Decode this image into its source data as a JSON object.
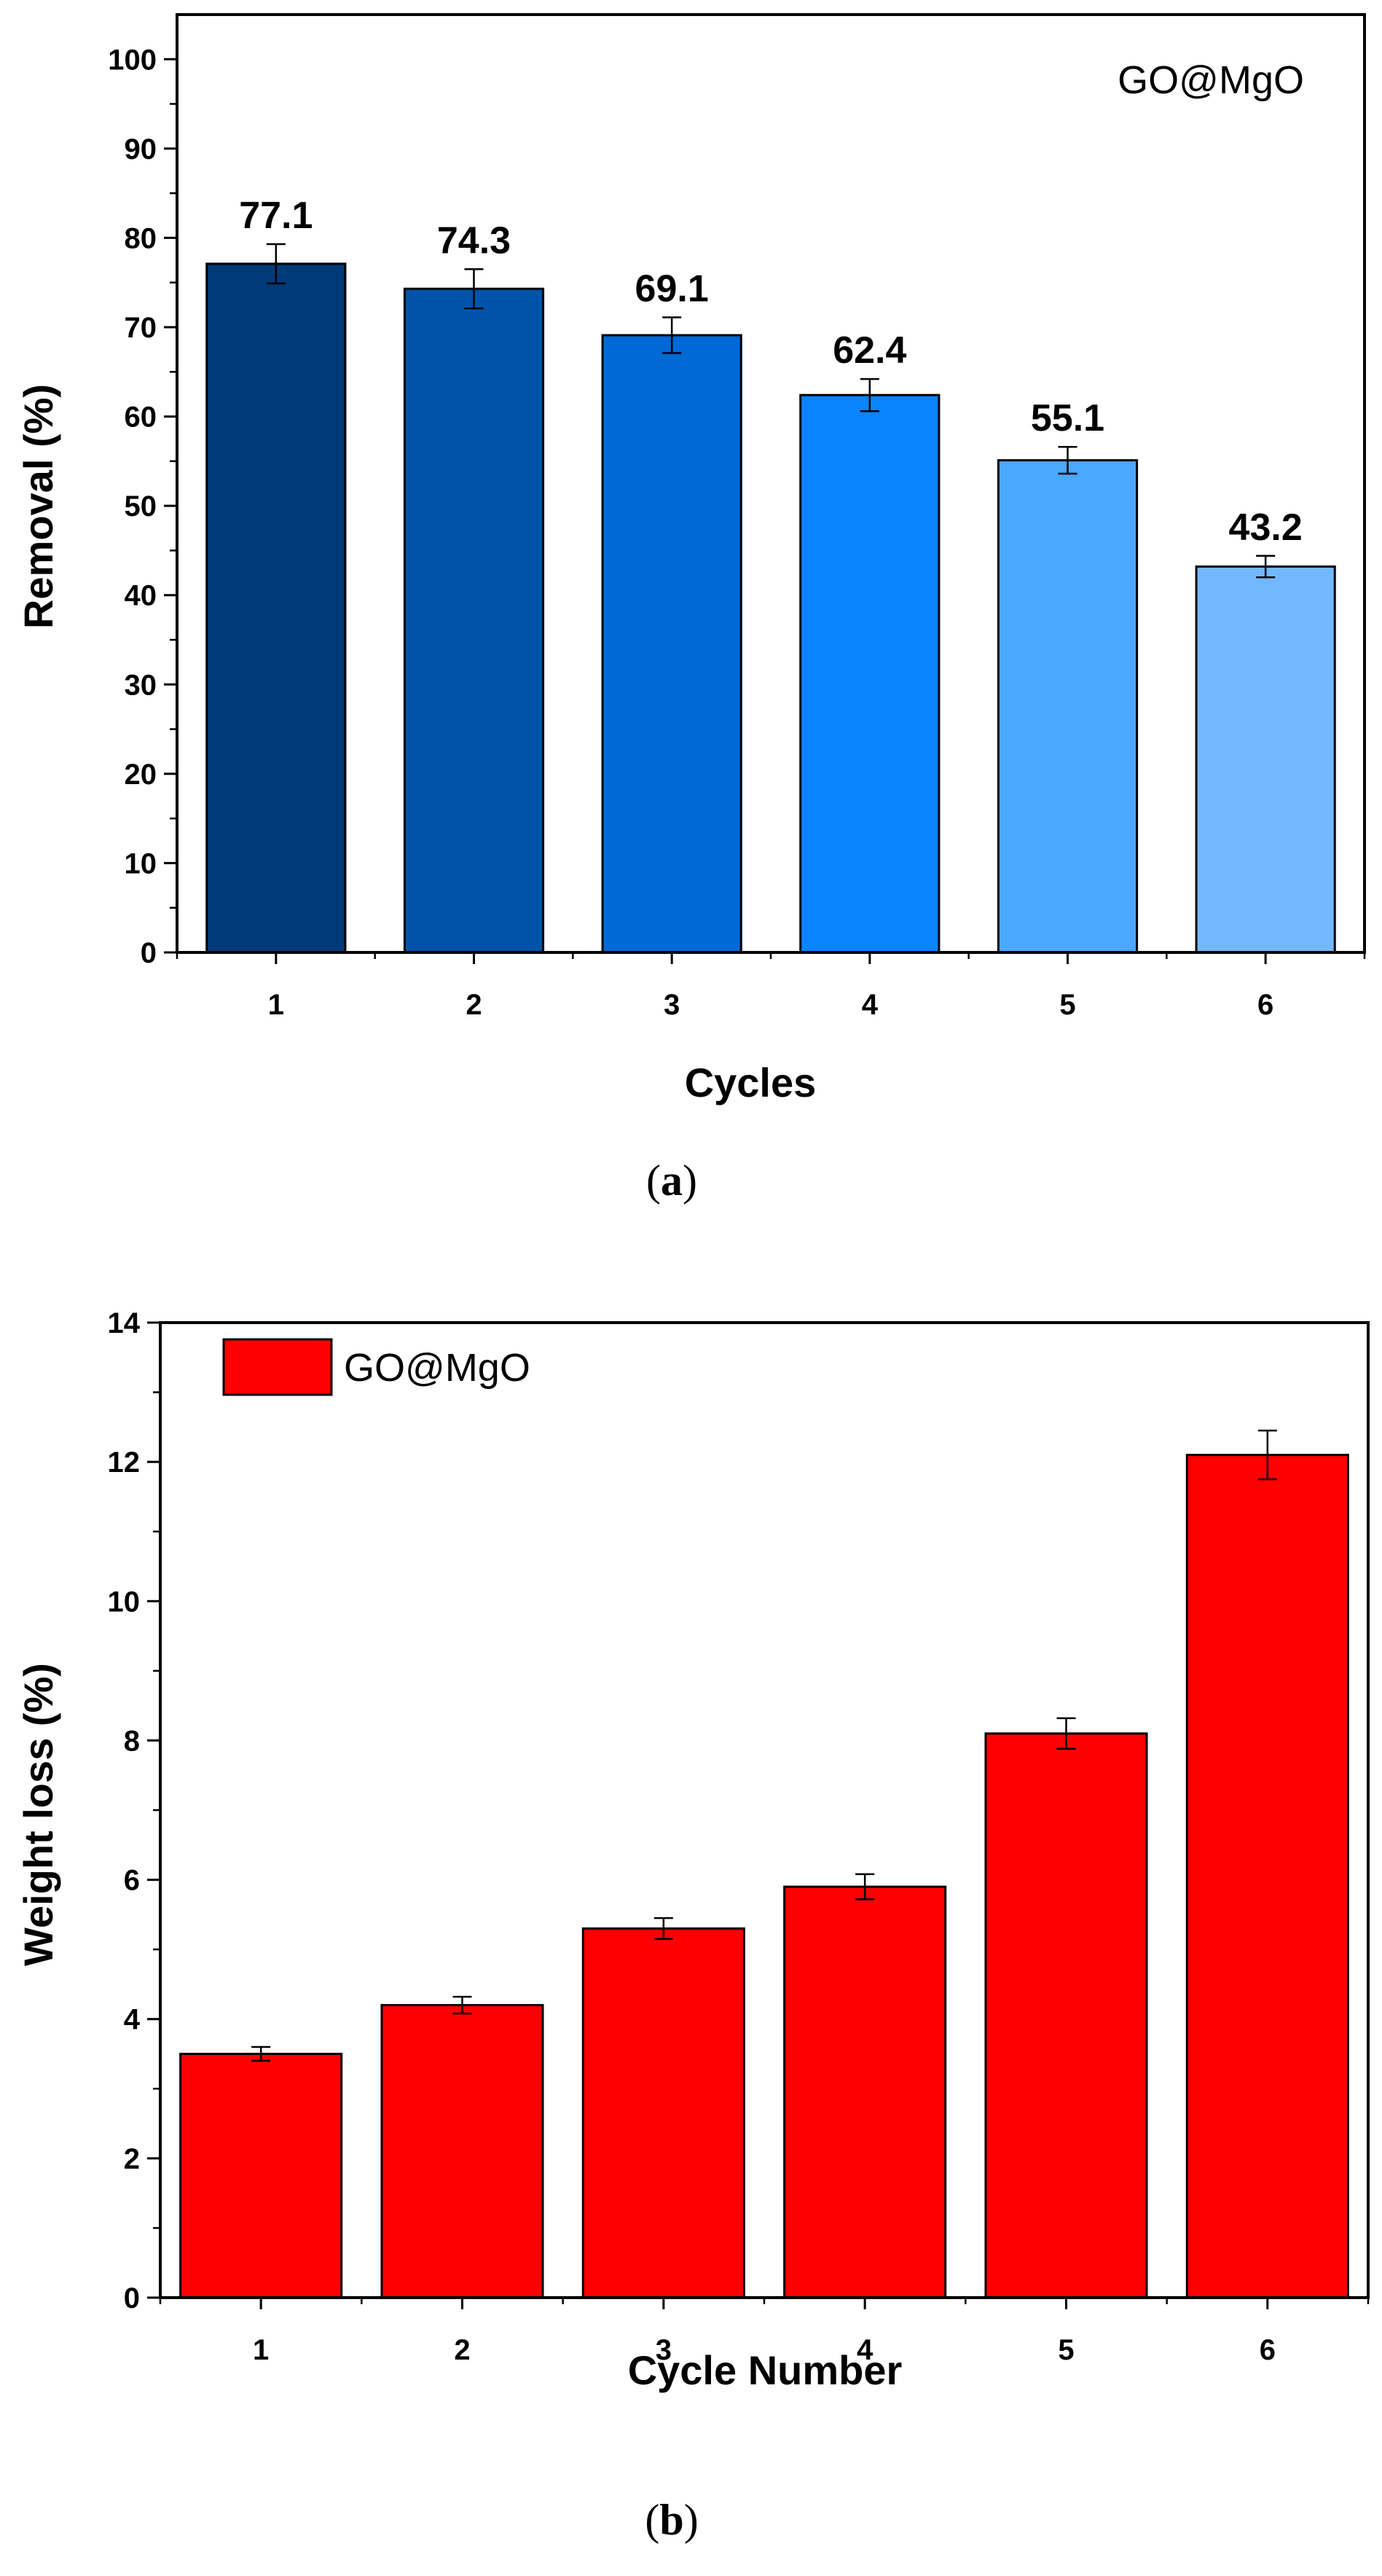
{
  "chart_data": [
    {
      "type": "bar",
      "panel": "a",
      "caption": "(a)",
      "caption_letter": "a",
      "categories": [
        "1",
        "2",
        "3",
        "4",
        "5",
        "6"
      ],
      "values": [
        77.1,
        74.3,
        69.1,
        62.4,
        55.1,
        43.2
      ],
      "errors": [
        2.2,
        2.2,
        2.0,
        1.8,
        1.5,
        1.2
      ],
      "data_labels": [
        "77.1",
        "74.3",
        "69.1",
        "62.4",
        "55.1",
        "43.2"
      ],
      "bar_colors": [
        "#003A78",
        "#0053A8",
        "#0069D6",
        "#0A84FF",
        "#4BA8FF",
        "#73B8FF"
      ],
      "title": "",
      "annotation": "GO@MgO",
      "xlabel": "Cycles",
      "ylabel": "Removal (%)",
      "ylim": [
        0,
        105
      ],
      "yticks": [
        0,
        10,
        20,
        30,
        40,
        50,
        60,
        70,
        80,
        90,
        100
      ],
      "grid": false
    },
    {
      "type": "bar",
      "panel": "b",
      "caption": "(b)",
      "caption_letter": "b",
      "categories": [
        "1",
        "2",
        "3",
        "4",
        "5",
        "6"
      ],
      "series": [
        {
          "name": "GO@MgO",
          "values": [
            3.5,
            4.2,
            5.3,
            5.9,
            8.1,
            12.1
          ],
          "errors": [
            0.1,
            0.12,
            0.15,
            0.18,
            0.22,
            0.35
          ]
        }
      ],
      "bar_color": "#FF0000",
      "title": "",
      "xlabel": "Cycle Number",
      "ylabel": "Weight loss (%)",
      "ylim": [
        0,
        14
      ],
      "yticks": [
        0,
        2,
        4,
        6,
        8,
        10,
        12,
        14
      ],
      "legend_position": "top-left",
      "grid": false
    }
  ]
}
